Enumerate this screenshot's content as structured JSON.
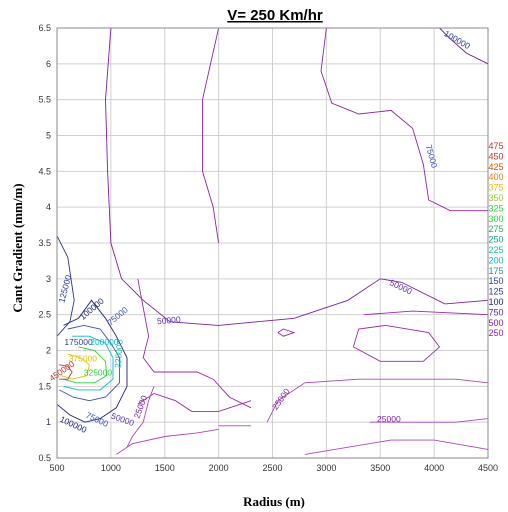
{
  "chart_data": {
    "type": "contour",
    "title": "V= 250 Km/hr",
    "xlabel": "Radius (m)",
    "ylabel": "Cant Gradient (mm/m)",
    "xlim": [
      500,
      4500
    ],
    "ylim": [
      0.5,
      6.5
    ],
    "x_ticks": [
      "500",
      "1000",
      "1500",
      "2000",
      "2500",
      "3000",
      "3500",
      "4000",
      "4500"
    ],
    "y_ticks": [
      "0.5",
      "1",
      "1.5",
      "2",
      "2.5",
      "3",
      "3.5",
      "4",
      "4.5",
      "5",
      "5.5",
      "6",
      "6.5"
    ],
    "grid": true,
    "legend_position": "right",
    "legend": [
      {
        "label": "475",
        "color": "#c0392b"
      },
      {
        "label": "450",
        "color": "#c0392b"
      },
      {
        "label": "425",
        "color": "#d35400"
      },
      {
        "label": "400",
        "color": "#e67e22"
      },
      {
        "label": "375",
        "color": "#e6c200"
      },
      {
        "label": "350",
        "color": "#9acd32"
      },
      {
        "label": "325",
        "color": "#2ecc40"
      },
      {
        "label": "300",
        "color": "#2ecc40"
      },
      {
        "label": "275",
        "color": "#27ae60"
      },
      {
        "label": "250",
        "color": "#16a085"
      },
      {
        "label": "225",
        "color": "#1abc9c"
      },
      {
        "label": "200",
        "color": "#00bcd4"
      },
      {
        "label": "175",
        "color": "#2980b9"
      },
      {
        "label": "150",
        "color": "#2c3e9e"
      },
      {
        "label": "125",
        "color": "#283593"
      },
      {
        "label": "100",
        "color": "#1a237e"
      },
      {
        "label": "750",
        "color": "#512da8"
      },
      {
        "label": "500",
        "color": "#7b1fa2"
      },
      {
        "label": "250",
        "color": "#8e24aa"
      }
    ],
    "contour_labels": [
      {
        "text": "100000",
        "x": 4200,
        "y": 6.3,
        "rot": 30,
        "color": "#2c3e9e"
      },
      {
        "text": "75000",
        "x": 3950,
        "y": 4.7,
        "rot": 75,
        "color": "#3f51b5"
      },
      {
        "text": "50000",
        "x": 3680,
        "y": 2.85,
        "rot": 25,
        "color": "#5e35b1"
      },
      {
        "text": "50000",
        "x": 1540,
        "y": 2.38,
        "rot": -5,
        "color": "#5e35b1"
      },
      {
        "text": "125000",
        "x": 600,
        "y": 2.85,
        "rot": -75,
        "color": "#283593"
      },
      {
        "text": "100000",
        "x": 840,
        "y": 2.55,
        "rot": -40,
        "color": "#1a237e"
      },
      {
        "text": "75000",
        "x": 1080,
        "y": 2.45,
        "rot": -40,
        "color": "#3f51b5"
      },
      {
        "text": "175000",
        "x": 700,
        "y": 2.08,
        "rot": 0,
        "color": "#2c3e9e"
      },
      {
        "text": "200000",
        "x": 940,
        "y": 2.08,
        "rot": 0,
        "color": "#00bcd4"
      },
      {
        "text": "225000",
        "x": 1100,
        "y": 1.95,
        "rot": -85,
        "color": "#1abc9c"
      },
      {
        "text": "375000",
        "x": 740,
        "y": 1.85,
        "rot": 0,
        "color": "#e6c200"
      },
      {
        "text": "450000",
        "x": 560,
        "y": 1.68,
        "rot": -35,
        "color": "#c0392b"
      },
      {
        "text": "325000",
        "x": 880,
        "y": 1.65,
        "rot": 0,
        "color": "#2ecc40"
      },
      {
        "text": "25000",
        "x": 1300,
        "y": 1.2,
        "rot": -70,
        "color": "#7b1fa2"
      },
      {
        "text": "25000",
        "x": 2600,
        "y": 1.3,
        "rot": -55,
        "color": "#7b1fa2"
      },
      {
        "text": "75000",
        "x": 860,
        "y": 1.0,
        "rot": 25,
        "color": "#3f51b5"
      },
      {
        "text": "50000",
        "x": 1100,
        "y": 1.0,
        "rot": 20,
        "color": "#5e35b1"
      },
      {
        "text": "25000",
        "x": 3580,
        "y": 1.0,
        "rot": 0,
        "color": "#7b1fa2"
      },
      {
        "text": "100000",
        "x": 640,
        "y": 0.93,
        "rot": 25,
        "color": "#1a237e"
      }
    ]
  }
}
